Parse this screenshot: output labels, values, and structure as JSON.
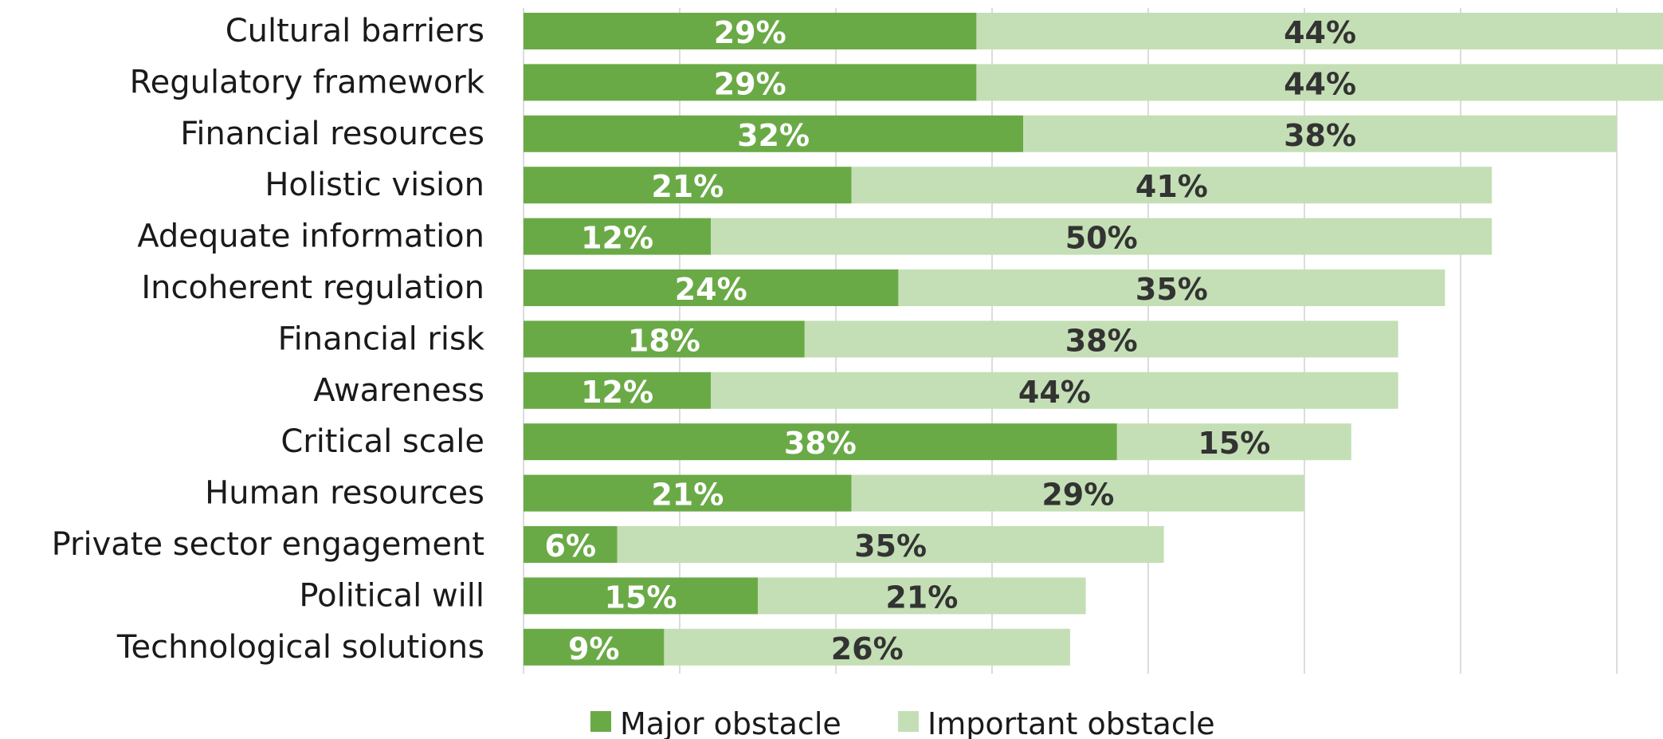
{
  "chart_data": {
    "type": "bar",
    "orientation": "horizontal",
    "stacked": true,
    "categories": [
      "Cultural barriers",
      "Regulatory framework",
      "Financial resources",
      "Holistic vision",
      "Adequate information",
      "Incoherent regulation",
      "Financial risk",
      "Awareness",
      "Critical scale",
      "Human resources",
      "Private sector engagement",
      "Political will",
      "Technological solutions"
    ],
    "series": [
      {
        "name": "Major obstacle",
        "color": "#6aaa46",
        "values": [
          29,
          29,
          32,
          21,
          12,
          24,
          18,
          12,
          38,
          21,
          6,
          15,
          9
        ]
      },
      {
        "name": "Important obstacle",
        "color": "#c4dfb5",
        "values": [
          44,
          44,
          38,
          41,
          50,
          35,
          38,
          44,
          15,
          29,
          35,
          21,
          26
        ]
      }
    ],
    "data_labels": [
      [
        "29%",
        "29%",
        "32%",
        "21%",
        "12%",
        "24%",
        "18%",
        "12%",
        "38%",
        "21%",
        "6%",
        "15%",
        "9%"
      ],
      [
        "44%",
        "44%",
        "38%",
        "41%",
        "50%",
        "35%",
        "38%",
        "44%",
        "15%",
        "29%",
        "35%",
        "21%",
        "26%"
      ]
    ],
    "xlim": [
      0,
      70
    ],
    "grid": true,
    "legend_position": "bottom"
  }
}
